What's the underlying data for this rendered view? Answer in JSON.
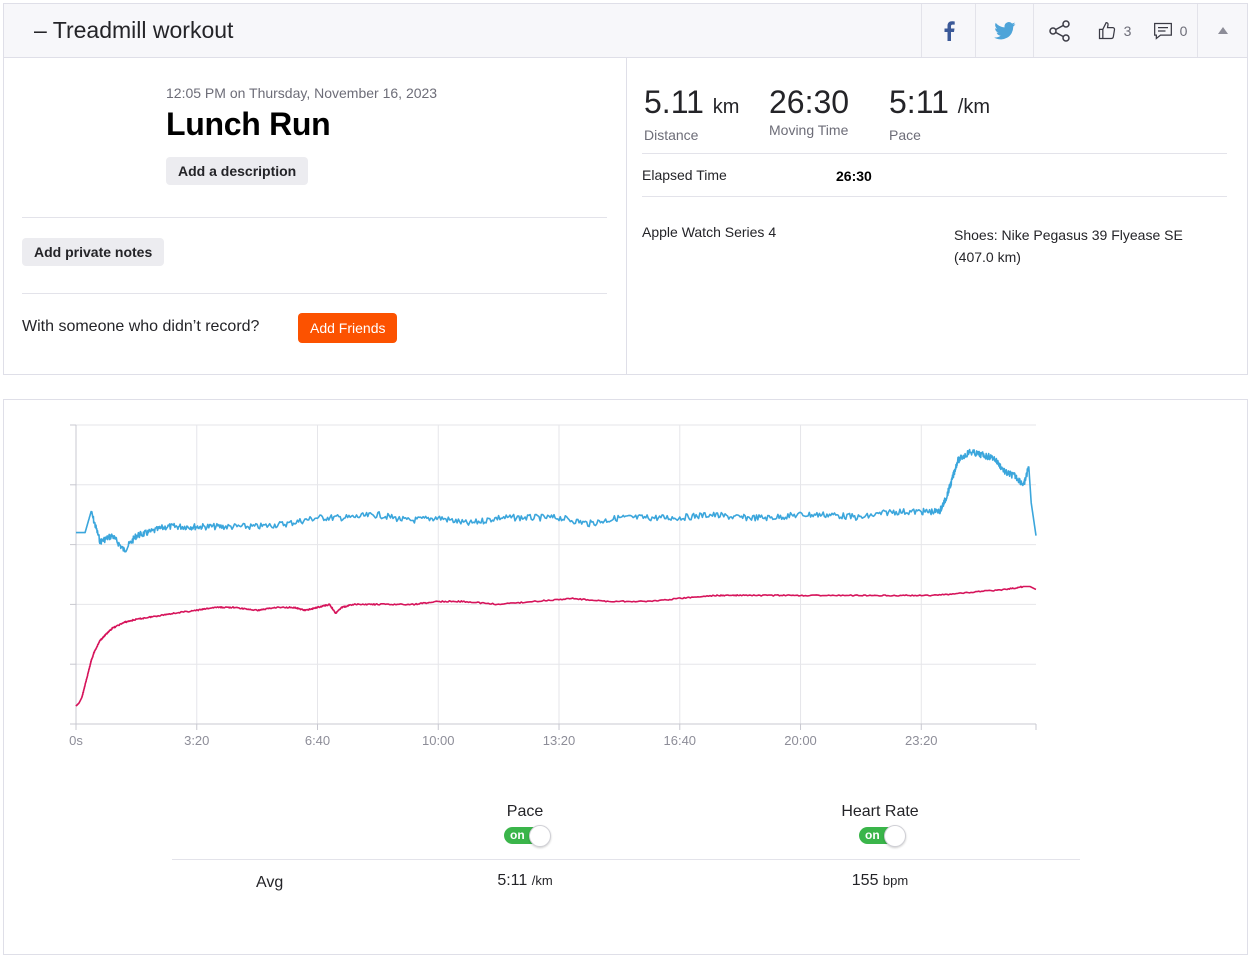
{
  "header": {
    "title_prefix": "–",
    "title": "Treadmill workout",
    "kudos_count": "3",
    "comment_count": "0"
  },
  "activity": {
    "date": "12:05 PM on Thursday, November 16, 2023",
    "name": "Lunch Run",
    "add_description": "Add a description",
    "add_private_notes": "Add private notes",
    "with_someone": "With someone who didn’t record?",
    "add_friends": "Add Friends"
  },
  "stats": {
    "distance_value": "5.11",
    "distance_unit": "km",
    "distance_label": "Distance",
    "moving_time_value": "26:30",
    "moving_time_label": "Moving Time",
    "pace_value": "5:11",
    "pace_unit": "/km",
    "pace_label": "Pace",
    "elapsed_label": "Elapsed Time",
    "elapsed_value": "26:30",
    "device": "Apple Watch Series 4",
    "shoes_line1": "Shoes: Nike Pegasus 39 Flyease SE",
    "shoes_line2": "(407.0 km)"
  },
  "colors": {
    "accent": "#fc5200",
    "pace_line": "#3ba6dc",
    "heart_rate_line": "#d6145b",
    "toggle_on": "#3ab54a",
    "facebook": "#3b5998",
    "twitter": "#4ea4d9"
  },
  "icons": {
    "facebook": "facebook-icon",
    "twitter": "twitter-icon",
    "share": "share-icon",
    "kudos": "thumbs-up-icon",
    "comment": "comment-icon",
    "collapse": "caret-up-icon"
  },
  "legend": {
    "pace_label": "Pace",
    "pace_toggle": "on",
    "hr_label": "Heart Rate",
    "hr_toggle": "on"
  },
  "summary": {
    "avg_label": "Avg",
    "pace_avg": "5:11",
    "pace_unit": "/km",
    "hr_avg": "155",
    "hr_unit": "bpm"
  },
  "chart_data": {
    "type": "line",
    "x_tick_labels": [
      "0s",
      "3:20",
      "6:40",
      "10:00",
      "13:20",
      "16:40",
      "20:00",
      "23:20"
    ],
    "x_ticks_seconds": [
      0,
      200,
      400,
      600,
      800,
      1000,
      1200,
      1400
    ],
    "xlim": [
      0,
      1590
    ],
    "ylim": [
      0,
      5
    ],
    "y_unit": "relative (unlabeled axis)",
    "grid": true,
    "series": [
      {
        "name": "Pace",
        "x": [
          0,
          15,
          25,
          40,
          60,
          80,
          100,
          120,
          150,
          180,
          210,
          250,
          300,
          350,
          400,
          450,
          500,
          550,
          600,
          650,
          700,
          750,
          800,
          850,
          900,
          950,
          1000,
          1050,
          1100,
          1150,
          1200,
          1250,
          1300,
          1350,
          1400,
          1430,
          1440,
          1450,
          1460,
          1480,
          1500,
          1520,
          1540,
          1555,
          1570,
          1578,
          1582,
          1590
        ],
        "values": [
          3.2,
          3.2,
          3.55,
          3.05,
          3.15,
          2.9,
          3.15,
          3.2,
          3.3,
          3.3,
          3.3,
          3.3,
          3.3,
          3.35,
          3.45,
          3.45,
          3.5,
          3.4,
          3.45,
          3.35,
          3.45,
          3.45,
          3.45,
          3.35,
          3.45,
          3.45,
          3.45,
          3.5,
          3.45,
          3.45,
          3.5,
          3.5,
          3.45,
          3.55,
          3.55,
          3.55,
          3.75,
          4.05,
          4.4,
          4.55,
          4.5,
          4.45,
          4.2,
          4.15,
          4.0,
          4.3,
          3.7,
          3.15
        ]
      },
      {
        "name": "Heart Rate",
        "x": [
          0,
          5,
          10,
          15,
          20,
          25,
          30,
          40,
          50,
          60,
          80,
          100,
          130,
          160,
          200,
          230,
          260,
          300,
          330,
          360,
          380,
          400,
          420,
          430,
          440,
          460,
          500,
          560,
          600,
          640,
          700,
          760,
          820,
          880,
          950,
          1000,
          1060,
          1100,
          1160,
          1220,
          1300,
          1360,
          1420,
          1480,
          1540,
          1570,
          1580,
          1590
        ],
        "values": [
          0.3,
          0.35,
          0.45,
          0.65,
          0.85,
          1.05,
          1.2,
          1.4,
          1.5,
          1.6,
          1.7,
          1.75,
          1.8,
          1.85,
          1.9,
          1.95,
          1.95,
          1.9,
          1.95,
          1.95,
          1.9,
          1.95,
          2.0,
          1.85,
          1.95,
          2.0,
          2.0,
          2.0,
          2.05,
          2.05,
          2.0,
          2.05,
          2.1,
          2.05,
          2.05,
          2.1,
          2.15,
          2.15,
          2.15,
          2.15,
          2.15,
          2.15,
          2.15,
          2.2,
          2.25,
          2.3,
          2.3,
          2.25
        ]
      }
    ]
  }
}
